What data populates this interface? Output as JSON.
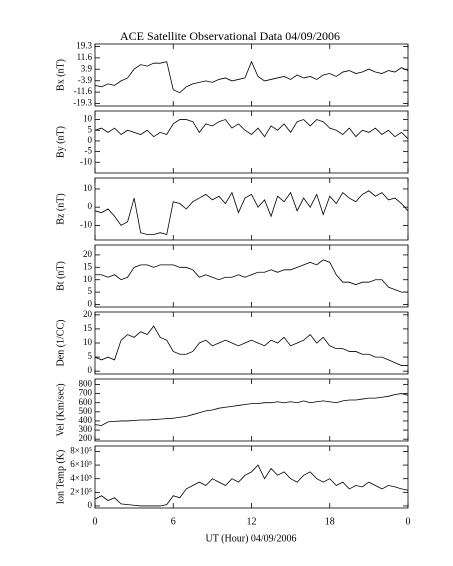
{
  "chart_data": {
    "type": "line",
    "title": "ACE Satellite Observational Data   04/09/2006",
    "xlabel": "UT (Hour)   04/09/2006",
    "xlim": [
      0,
      24
    ],
    "xticks": [
      0,
      6,
      12,
      18,
      {
        "value": 24,
        "label": "0"
      }
    ],
    "color": "#000000",
    "x": [
      0,
      0.5,
      1,
      1.5,
      2,
      2.5,
      3,
      3.5,
      4,
      4.5,
      5,
      5.5,
      6,
      6.5,
      7,
      7.5,
      8,
      8.5,
      9,
      9.5,
      10,
      10.5,
      11,
      11.5,
      12,
      12.5,
      13,
      13.5,
      14,
      14.5,
      15,
      15.5,
      16,
      16.5,
      17,
      17.5,
      18,
      18.5,
      19,
      19.5,
      20,
      20.5,
      21,
      21.5,
      22,
      22.5,
      23,
      23.5,
      24
    ],
    "panels": [
      {
        "ylabel": "Bx (nT)",
        "ylim": [
          -21,
          21
        ],
        "yticks": [
          19.3,
          11.6,
          3.9,
          -3.9,
          -11.6,
          -19.3
        ],
        "values": [
          -7,
          -8,
          -6,
          -7,
          -4,
          -2,
          4,
          7,
          6,
          8,
          8,
          9,
          -10,
          -12,
          -8,
          -6,
          -5,
          -4,
          -5,
          -3,
          -2,
          -4,
          -3,
          -2,
          9,
          -1,
          -4,
          -3,
          -2,
          -1,
          -3,
          0,
          -2,
          -1,
          -3,
          0,
          1,
          -1,
          2,
          3,
          1,
          2,
          4,
          2,
          1,
          3,
          2,
          5,
          3
        ]
      },
      {
        "ylabel": "By (nT)",
        "ylim": [
          -15,
          14
        ],
        "yticks": [
          10,
          5,
          0,
          -5,
          -10
        ],
        "values": [
          5,
          6,
          4,
          6,
          3,
          5,
          4,
          3,
          5,
          2,
          4,
          3,
          8,
          10,
          10,
          9,
          4,
          8,
          7,
          9,
          10,
          6,
          8,
          5,
          3,
          6,
          2,
          7,
          5,
          8,
          4,
          9,
          10,
          7,
          10,
          9,
          6,
          5,
          3,
          6,
          2,
          5,
          4,
          6,
          3,
          5,
          2,
          4,
          1
        ]
      },
      {
        "ylabel": "Bz (nT)",
        "ylim": [
          -18,
          16
        ],
        "yticks": [
          10,
          0,
          -10
        ],
        "values": [
          -2,
          -3,
          -1,
          -5,
          -10,
          -8,
          5,
          -14,
          -15,
          -15,
          -14,
          -15,
          3,
          2,
          -1,
          3,
          5,
          7,
          4,
          6,
          2,
          8,
          -3,
          5,
          7,
          0,
          4,
          -5,
          6,
          3,
          8,
          -2,
          5,
          0,
          7,
          -4,
          6,
          2,
          8,
          5,
          3,
          7,
          9,
          6,
          8,
          4,
          5,
          2,
          -2
        ]
      },
      {
        "ylabel": "Bt (nT)",
        "ylim": [
          -1,
          24
        ],
        "yticks": [
          20,
          15,
          10,
          5,
          0
        ],
        "values": [
          12,
          12,
          11,
          12,
          10,
          11,
          15,
          16,
          16,
          15,
          16,
          16,
          16,
          15,
          15,
          14,
          11,
          12,
          11,
          10,
          11,
          11,
          12,
          11,
          12,
          13,
          13,
          14,
          13,
          14,
          14,
          15,
          16,
          17,
          16,
          18,
          17,
          12,
          9,
          9,
          8,
          9,
          9,
          10,
          10,
          7,
          6,
          5,
          5
        ]
      },
      {
        "ylabel": "Den (1/CC)",
        "ylim": [
          -1,
          21
        ],
        "yticks": [
          20,
          15,
          10,
          5,
          0
        ],
        "values": [
          5,
          4,
          5,
          4,
          11,
          13,
          12,
          14,
          13,
          16,
          12,
          11,
          7,
          6,
          6,
          7,
          10,
          11,
          9,
          10,
          11,
          10,
          9,
          10,
          11,
          10,
          9,
          11,
          10,
          12,
          9,
          10,
          11,
          13,
          10,
          12,
          9,
          8,
          8,
          7,
          7,
          6,
          6,
          5,
          5,
          4,
          3,
          2,
          2
        ]
      },
      {
        "ylabel": "Vel (Km/sec)",
        "ylim": [
          180,
          860
        ],
        "yticks": [
          800,
          700,
          600,
          500,
          400,
          300,
          200
        ],
        "values": [
          360,
          350,
          390,
          395,
          400,
          400,
          405,
          410,
          410,
          415,
          420,
          425,
          430,
          440,
          450,
          470,
          490,
          510,
          520,
          540,
          550,
          560,
          570,
          580,
          590,
          590,
          600,
          600,
          610,
          600,
          610,
          600,
          620,
          600,
          610,
          620,
          610,
          600,
          620,
          630,
          630,
          640,
          650,
          650,
          660,
          670,
          690,
          700,
          680
        ]
      },
      {
        "ylabel": "Ion Temp (K)",
        "ylim": [
          -30000,
          880000
        ],
        "yticks": [
          {
            "value": 800000,
            "label": "8×10⁵"
          },
          {
            "value": 600000,
            "label": "6×10⁵"
          },
          {
            "value": 400000,
            "label": "4×10⁵"
          },
          {
            "value": 200000,
            "label": "2×10⁵"
          },
          0
        ],
        "values": [
          100000,
          150000,
          80000,
          120000,
          30000,
          20000,
          10000,
          0,
          0,
          0,
          0,
          20000,
          150000,
          120000,
          250000,
          300000,
          350000,
          300000,
          400000,
          350000,
          300000,
          400000,
          350000,
          450000,
          500000,
          600000,
          400000,
          550000,
          450000,
          500000,
          400000,
          350000,
          450000,
          500000,
          400000,
          350000,
          400000,
          300000,
          350000,
          250000,
          300000,
          280000,
          350000,
          300000,
          250000,
          300000,
          280000,
          250000,
          230000
        ]
      }
    ]
  }
}
